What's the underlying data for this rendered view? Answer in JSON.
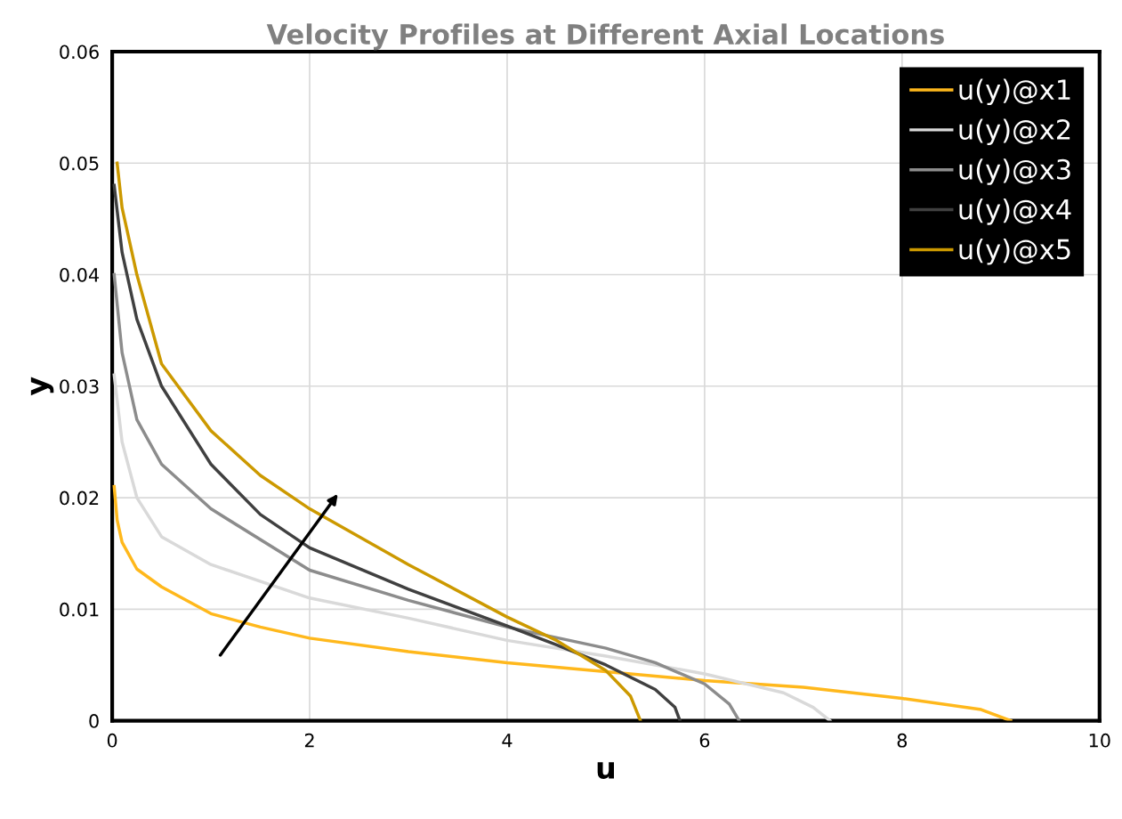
{
  "chart_data": {
    "type": "line",
    "title": "Velocity Profiles at Different Axial Locations",
    "xlabel": "u",
    "ylabel": "y",
    "xlim": [
      0,
      10
    ],
    "ylim": [
      0,
      0.06
    ],
    "xticks": [
      0,
      2,
      4,
      6,
      8,
      10
    ],
    "yticks": [
      0,
      0.01,
      0.02,
      0.03,
      0.04,
      0.05,
      0.06
    ],
    "grid": true,
    "legend": "top right",
    "marker": "none",
    "line_style": "solid",
    "series": [
      {
        "name": "u(y)@x1",
        "color": "#ffb81c",
        "x": [
          0.02,
          0.05,
          0.1,
          0.25,
          0.5,
          1,
          1.5,
          2,
          3,
          4,
          5,
          6,
          7,
          8,
          8.8,
          9.1
        ],
        "values": [
          0.021,
          0.018,
          0.016,
          0.0136,
          0.012,
          0.0096,
          0.0084,
          0.0074,
          0.0062,
          0.0052,
          0.0044,
          0.0036,
          0.003,
          0.002,
          0.001,
          0
        ]
      },
      {
        "name": "u(y)@x2",
        "color": "#d9d9d9",
        "x": [
          0.02,
          0.1,
          0.25,
          0.5,
          1,
          2,
          3,
          4,
          5,
          6,
          6.8,
          7.1,
          7.27
        ],
        "values": [
          0.031,
          0.025,
          0.02,
          0.0165,
          0.014,
          0.011,
          0.0092,
          0.0072,
          0.0058,
          0.0042,
          0.0025,
          0.0012,
          0
        ]
      },
      {
        "name": "u(y)@x3",
        "color": "#8c8c8c",
        "x": [
          0.02,
          0.1,
          0.25,
          0.5,
          1,
          2,
          3,
          4,
          5,
          5.5,
          6,
          6.25,
          6.35
        ],
        "values": [
          0.04,
          0.033,
          0.027,
          0.023,
          0.019,
          0.0135,
          0.0108,
          0.0084,
          0.0065,
          0.0052,
          0.0033,
          0.0015,
          0
        ]
      },
      {
        "name": "u(y)@x4",
        "color": "#404040",
        "x": [
          0.02,
          0.1,
          0.25,
          0.5,
          1,
          1.5,
          2,
          3,
          4,
          4.5,
          5,
          5.5,
          5.7,
          5.75
        ],
        "values": [
          0.048,
          0.042,
          0.036,
          0.03,
          0.023,
          0.0185,
          0.0155,
          0.0118,
          0.0085,
          0.0068,
          0.005,
          0.0028,
          0.0012,
          0
        ]
      },
      {
        "name": "u(y)@x5",
        "color": "#cc9900",
        "x": [
          0.05,
          0.1,
          0.25,
          0.5,
          1,
          1.5,
          2,
          3,
          4,
          4.5,
          5,
          5.25,
          5.35
        ],
        "values": [
          0.05,
          0.046,
          0.04,
          0.032,
          0.026,
          0.022,
          0.019,
          0.014,
          0.0093,
          0.0072,
          0.0045,
          0.0022,
          0
        ]
      }
    ]
  }
}
